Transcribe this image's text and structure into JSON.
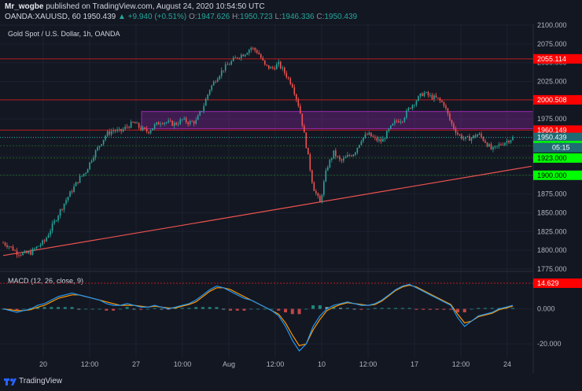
{
  "header": {
    "author": "Mr_wogbe",
    "published_text": "published on TradingView.com, August 24, 2020 10:54:50 UTC",
    "symbol": "OANDA:XAUUSD, 60",
    "price": "1950.439",
    "change": "+9.940 (+0.51%)",
    "o_label": "O:",
    "o_value": "1947.626",
    "h_label": "H:",
    "h_value": "1950.723",
    "l_label": "L:",
    "l_value": "1946.336",
    "c_label": "C:",
    "c_value": "1950.439"
  },
  "chart_title": "Gold Spot / U.S. Dollar, 1h, OANDA",
  "macd_label": "MACD (12, 26, close, 9)",
  "footer": {
    "brand": "TradingView"
  },
  "colors": {
    "background": "#131722",
    "up": "#26a69a",
    "down": "#ef5350",
    "zone": "#9c27b0",
    "macd_line": "#2196f3",
    "signal_line": "#ff9800",
    "label_red": "#ff0000",
    "label_green": "#00ff00",
    "label_cyan": "#1e6b74"
  },
  "chart_data": [
    {
      "type": "candlestick",
      "title": "Gold Spot / U.S. Dollar, 1h, OANDA",
      "ylim": [
        1775,
        2100
      ],
      "y_ticks": [
        "2100.000",
        "2075.000",
        "2050.000",
        "2025.000",
        "2000.000",
        "1975.000",
        "1950.000",
        "1925.000",
        "1900.000",
        "1875.000",
        "1850.000",
        "1825.000",
        "1800.000",
        "1775.000"
      ],
      "x_ticks": [
        "20",
        "12:00",
        "27",
        "10:00",
        "Aug",
        "12:00",
        "10",
        "12:00",
        "17",
        "12:00",
        "24"
      ],
      "price_path": [
        1810,
        1805,
        1797,
        1795,
        1797,
        1805,
        1812,
        1830,
        1848,
        1865,
        1880,
        1895,
        1905,
        1925,
        1940,
        1955,
        1960,
        1958,
        1965,
        1970,
        1962,
        1958,
        1966,
        1972,
        1970,
        1968,
        1974,
        1970,
        1972,
        1990,
        2015,
        2030,
        2042,
        2050,
        2058,
        2062,
        2070,
        2064,
        2046,
        2042,
        2048,
        2035,
        2020,
        1990,
        1940,
        1885,
        1863,
        1910,
        1930,
        1918,
        1925,
        1930,
        1948,
        1955,
        1948,
        1945,
        1960,
        1972,
        1975,
        1990,
        2000,
        2010,
        2005,
        2002,
        1995,
        1970,
        1955,
        1948,
        1950,
        1955,
        1945,
        1933,
        1940,
        1945,
        1950
      ],
      "zone": [
        1962,
        1985
      ],
      "levels": [
        {
          "value": "2055.114",
          "kind": "red"
        },
        {
          "value": "2000.508",
          "kind": "red"
        },
        {
          "value": "1960.149",
          "kind": "red"
        },
        {
          "value": "1950.439",
          "kind": "current"
        },
        {
          "value": "1939.383",
          "kind": "green"
        },
        {
          "value": "1923.000",
          "kind": "green"
        },
        {
          "value": "1900.000",
          "kind": "green"
        }
      ],
      "countdown": "05:15",
      "trendline": [
        [
          0,
          1793
        ],
        [
          1,
          1912
        ]
      ]
    },
    {
      "type": "line",
      "title": "MACD (12, 26, close, 9)",
      "ylim": [
        -28,
        20
      ],
      "y_ticks": [
        "0.000",
        "-20.000"
      ],
      "level_label": "14.629",
      "macd": [
        0,
        -1,
        -2,
        -1,
        0,
        2,
        3,
        5,
        7,
        8,
        9,
        8,
        7,
        6,
        5,
        3,
        2,
        2,
        3,
        2,
        1,
        1,
        2,
        1,
        0,
        1,
        2,
        3,
        5,
        8,
        11,
        13,
        12,
        10,
        8,
        6,
        5,
        3,
        1,
        -1,
        -4,
        -10,
        -18,
        -24,
        -20,
        -10,
        -4,
        0,
        2,
        3,
        4,
        3,
        2,
        2,
        3,
        5,
        8,
        11,
        13,
        14,
        12,
        10,
        8,
        6,
        4,
        2,
        -5,
        -10,
        -7,
        -4,
        -3,
        -2,
        0,
        1,
        2
      ],
      "signal": [
        0,
        -0.5,
        -1,
        -1,
        -0.5,
        1,
        2,
        4,
        6,
        7,
        8,
        8,
        7,
        6,
        5,
        4,
        3,
        2,
        2,
        2,
        1.5,
        1,
        1.5,
        1,
        0.5,
        0.5,
        1.5,
        2.5,
        4,
        7,
        10,
        12,
        12,
        11,
        9,
        7,
        5,
        3,
        1,
        -1,
        -3,
        -8,
        -15,
        -21,
        -20,
        -12,
        -6,
        -1,
        1,
        2.5,
        3.5,
        3,
        2.5,
        2,
        2.5,
        4.5,
        7.5,
        10.5,
        12.5,
        13.5,
        12.5,
        10.5,
        8.5,
        6.5,
        4.5,
        2.5,
        -3,
        -8,
        -7,
        -4.5,
        -3.5,
        -2.5,
        -0.5,
        0.5,
        1.5
      ]
    }
  ]
}
